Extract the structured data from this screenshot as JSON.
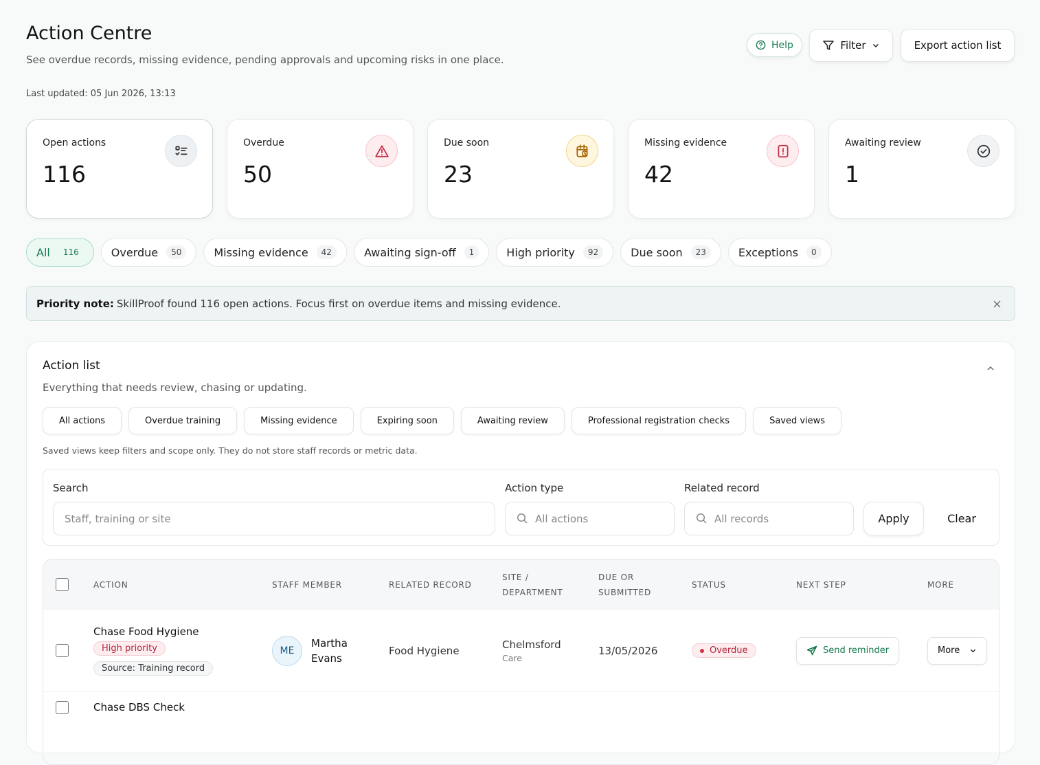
{
  "header": {
    "title": "Action Centre",
    "subtitle": "See overdue records, missing evidence, pending approvals and upcoming risks in one place.",
    "last_updated": "Last updated: 05 Jun 2026, 13:13",
    "help": "Help",
    "filter": "Filter",
    "export": "Export action list"
  },
  "stats": [
    {
      "label": "Open actions",
      "value": 116
    },
    {
      "label": "Overdue",
      "value": 50
    },
    {
      "label": "Due soon",
      "value": 23
    },
    {
      "label": "Missing evidence",
      "value": 42
    },
    {
      "label": "Awaiting review",
      "value": 1
    }
  ],
  "tabs": [
    {
      "label": "All",
      "count": 116
    },
    {
      "label": "Overdue",
      "count": 50
    },
    {
      "label": "Missing evidence",
      "count": 42
    },
    {
      "label": "Awaiting sign-off",
      "count": 1
    },
    {
      "label": "High priority",
      "count": 92
    },
    {
      "label": "Due soon",
      "count": 23
    },
    {
      "label": "Exceptions",
      "count": 0
    }
  ],
  "note": {
    "label": "Priority note:",
    "text": "SkillProof found 116 open actions. Focus first on overdue items and missing evidence."
  },
  "action_list": {
    "title": "Action list",
    "subtitle": "Everything that needs review, chasing or updating.",
    "views": [
      "All actions",
      "Overdue training",
      "Missing evidence",
      "Expiring soon",
      "Awaiting review",
      "Professional registration checks",
      "Saved views"
    ],
    "views_note": "Saved views keep filters and scope only. They do not store staff records or metric data.",
    "filters": {
      "search": {
        "label": "Search",
        "placeholder": "Staff, training or site"
      },
      "action_type": {
        "label": "Action type",
        "placeholder": "All actions"
      },
      "related_record": {
        "label": "Related record",
        "placeholder": "All records"
      },
      "apply": "Apply",
      "clear": "Clear"
    },
    "columns": [
      "ACTION",
      "STAFF MEMBER",
      "RELATED RECORD",
      "SITE / DEPARTMENT",
      "DUE OR SUBMITTED",
      "STATUS",
      "NEXT STEP",
      "MORE"
    ],
    "rows": [
      {
        "action": "Chase Food Hygiene",
        "priority": "High priority",
        "source": "Source: Training record",
        "initials": "ME",
        "staff": "Martha Evans",
        "related": "Food Hygiene",
        "site": "Chelmsford",
        "department": "Care",
        "due": "13/05/2026",
        "status": "Overdue",
        "next_step": "Send reminder",
        "more": "More"
      },
      {
        "action": "Chase DBS Check"
      }
    ]
  }
}
